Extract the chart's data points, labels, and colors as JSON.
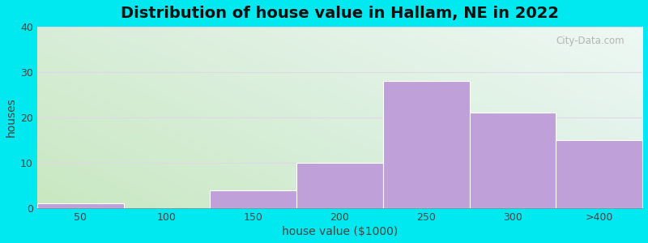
{
  "title": "Distribution of house value in Hallam, NE in 2022",
  "xlabel": "house value ($1000)",
  "ylabel": "houses",
  "categories": [
    "50",
    "100",
    "150",
    "200",
    "250",
    "300",
    ">400"
  ],
  "values": [
    1,
    0,
    4,
    10,
    28,
    21,
    15
  ],
  "bar_color": "#c0a0d8",
  "bar_edge_color": "#c0a0d8",
  "ylim": [
    0,
    40
  ],
  "yticks": [
    0,
    10,
    20,
    30,
    40
  ],
  "background_color": "#00e8f0",
  "gradient_top_left": "#d4edd4",
  "gradient_top_right": "#e8f8f0",
  "gradient_bottom_left": "#c8e8c0",
  "gradient_bottom_right": "#d8f0e8",
  "grid_color": "#e0d8e8",
  "title_fontsize": 14,
  "axis_fontsize": 10,
  "tick_fontsize": 9,
  "watermark": "City-Data.com"
}
